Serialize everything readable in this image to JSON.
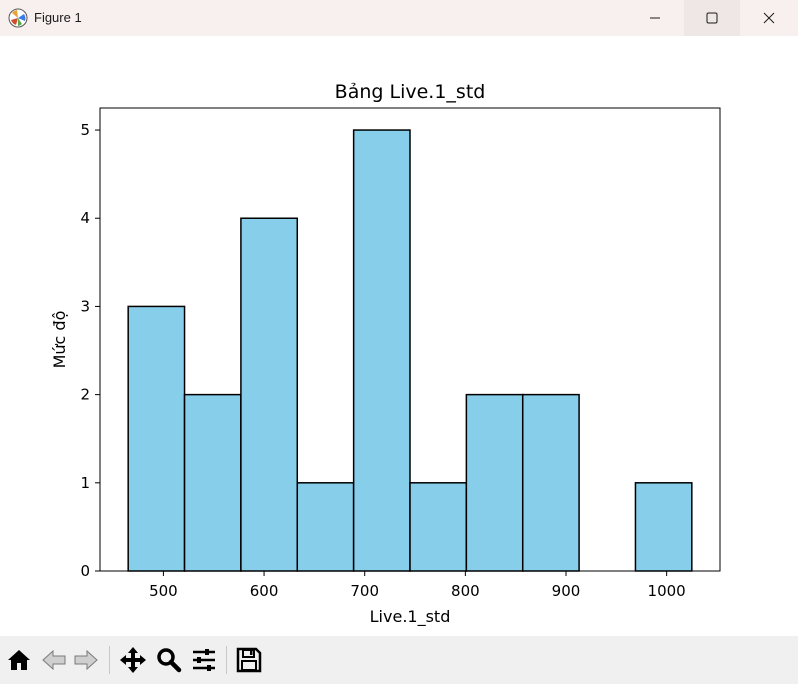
{
  "window": {
    "title": "Figure 1"
  },
  "toolbar": {
    "buttons": [
      "home-icon",
      "back-icon",
      "forward-icon",
      "pan-icon",
      "zoom-icon",
      "configure-subplots-icon",
      "save-icon"
    ]
  },
  "colors": {
    "bar_fill": "#87ceeb",
    "bar_edge": "#000000",
    "titlebar_bg": "#f8efef",
    "toolbar_bg": "#f0f0f0"
  },
  "chart_data": {
    "type": "bar",
    "title": "Bảng Live.1_std",
    "xlabel": "Live.1_std",
    "ylabel": "Mức độ",
    "bins": [
      {
        "x0": 465,
        "x1": 521,
        "count": 3
      },
      {
        "x0": 521,
        "x1": 577,
        "count": 2
      },
      {
        "x0": 577,
        "x1": 633,
        "count": 4
      },
      {
        "x0": 633,
        "x1": 689,
        "count": 1
      },
      {
        "x0": 689,
        "x1": 745,
        "count": 5
      },
      {
        "x0": 745,
        "x1": 801,
        "count": 1
      },
      {
        "x0": 801,
        "x1": 857,
        "count": 2
      },
      {
        "x0": 857,
        "x1": 913,
        "count": 2
      },
      {
        "x0": 913,
        "x1": 969,
        "count": 0
      },
      {
        "x0": 969,
        "x1": 1025,
        "count": 1
      }
    ],
    "xticks": [
      500,
      600,
      700,
      800,
      900,
      1000
    ],
    "yticks": [
      0,
      1,
      2,
      3,
      4,
      5
    ],
    "xlim": [
      437,
      1053
    ],
    "ylim": [
      0,
      5.25
    ],
    "grid": false,
    "legend": null
  }
}
